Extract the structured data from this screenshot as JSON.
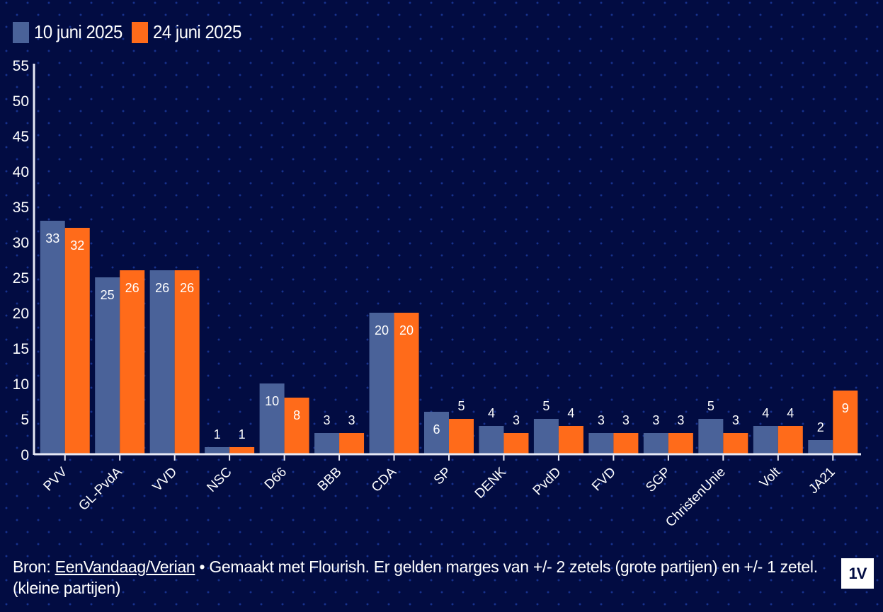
{
  "chart_data": {
    "type": "bar",
    "title": "",
    "xlabel": "",
    "ylabel": "",
    "ylim": [
      0,
      55
    ],
    "yticks": [
      0,
      5,
      10,
      15,
      20,
      25,
      30,
      35,
      40,
      45,
      50,
      55
    ],
    "grid": false,
    "legend_position": "top-left",
    "categories": [
      "PVV",
      "GL-PvdA",
      "VVD",
      "NSC",
      "D66",
      "BBB",
      "CDA",
      "SP",
      "DENK",
      "PvdD",
      "FVD",
      "SGP",
      "ChristenUnie",
      "Volt",
      "JA21"
    ],
    "series": [
      {
        "name": "10 juni 2025",
        "color": "#4a6299",
        "values": [
          33,
          25,
          26,
          1,
          10,
          3,
          20,
          6,
          4,
          5,
          3,
          3,
          5,
          4,
          2
        ]
      },
      {
        "name": "24 juni 2025",
        "color": "#ff6b1a",
        "values": [
          32,
          26,
          26,
          1,
          8,
          3,
          20,
          5,
          3,
          4,
          3,
          3,
          3,
          4,
          9
        ]
      }
    ]
  },
  "footer": {
    "prefix": "Bron: ",
    "source_link": "EenVandaag/Verian",
    "text": " • Gemaakt met Flourish. Er gelden marges van +/- 2 zetels (grote partijen) en +/- 1 zetel. (kleine partijen)"
  },
  "logo": {
    "text": "1V"
  },
  "colors": {
    "background": "#020c42",
    "axis": "#e6e8f5"
  }
}
